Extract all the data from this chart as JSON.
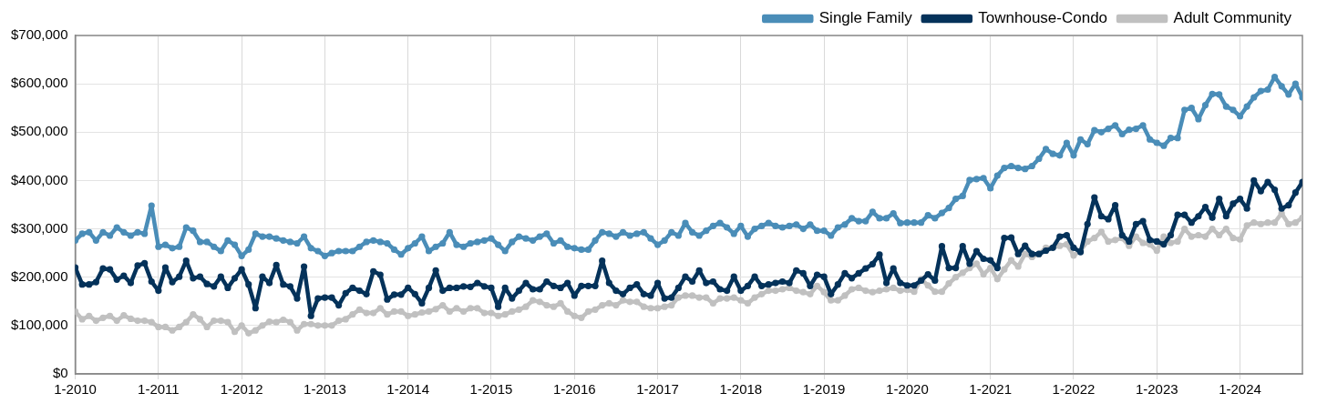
{
  "chart_data": {
    "type": "line",
    "marker": "circle",
    "line_style": "solid",
    "grid": true,
    "legend": "top right",
    "x": [
      "2010-01",
      "2010-02",
      "2010-03",
      "2010-04",
      "2010-05",
      "2010-06",
      "2010-07",
      "2010-08",
      "2010-09",
      "2010-10",
      "2010-11",
      "2010-12",
      "2011-01",
      "2011-02",
      "2011-03",
      "2011-04",
      "2011-05",
      "2011-06",
      "2011-07",
      "2011-08",
      "2011-09",
      "2011-10",
      "2011-11",
      "2011-12",
      "2012-01",
      "2012-02",
      "2012-03",
      "2012-04",
      "2012-05",
      "2012-06",
      "2012-07",
      "2012-08",
      "2012-09",
      "2012-10",
      "2012-11",
      "2012-12",
      "2013-01",
      "2013-02",
      "2013-03",
      "2013-04",
      "2013-05",
      "2013-06",
      "2013-07",
      "2013-08",
      "2013-09",
      "2013-10",
      "2013-11",
      "2013-12",
      "2014-01",
      "2014-02",
      "2014-03",
      "2014-04",
      "2014-05",
      "2014-06",
      "2014-07",
      "2014-08",
      "2014-09",
      "2014-10",
      "2014-11",
      "2014-12",
      "2015-01",
      "2015-02",
      "2015-03",
      "2015-04",
      "2015-05",
      "2015-06",
      "2015-07",
      "2015-08",
      "2015-09",
      "2015-10",
      "2015-11",
      "2015-12",
      "2016-01",
      "2016-02",
      "2016-03",
      "2016-04",
      "2016-05",
      "2016-06",
      "2016-07",
      "2016-08",
      "2016-09",
      "2016-10",
      "2016-11",
      "2016-12",
      "2017-01",
      "2017-02",
      "2017-03",
      "2017-04",
      "2017-05",
      "2017-06",
      "2017-07",
      "2017-08",
      "2017-09",
      "2017-10",
      "2017-11",
      "2017-12",
      "2018-01",
      "2018-02",
      "2018-03",
      "2018-04",
      "2018-05",
      "2018-06",
      "2018-07",
      "2018-08",
      "2018-09",
      "2018-10",
      "2018-11",
      "2018-12",
      "2019-01",
      "2019-02",
      "2019-03",
      "2019-04",
      "2019-05",
      "2019-06",
      "2019-07",
      "2019-08",
      "2019-09",
      "2019-10",
      "2019-11",
      "2019-12",
      "2020-01",
      "2020-02",
      "2020-03",
      "2020-04",
      "2020-05",
      "2020-06",
      "2020-07",
      "2020-08",
      "2020-09",
      "2020-10",
      "2020-11",
      "2020-12",
      "2021-01",
      "2021-02",
      "2021-03",
      "2021-04",
      "2021-05",
      "2021-06",
      "2021-07",
      "2021-08",
      "2021-09",
      "2021-10",
      "2021-11",
      "2021-12",
      "2022-01",
      "2022-02",
      "2022-03",
      "2022-04",
      "2022-05",
      "2022-06",
      "2022-07",
      "2022-08",
      "2022-09",
      "2022-10",
      "2022-11",
      "2022-12",
      "2023-01",
      "2023-02",
      "2023-03",
      "2023-04",
      "2023-05",
      "2023-06",
      "2023-07",
      "2023-08",
      "2023-09",
      "2023-10",
      "2023-11",
      "2023-12",
      "2024-01",
      "2024-02",
      "2024-03",
      "2024-04",
      "2024-05",
      "2024-06",
      "2024-07",
      "2024-08",
      "2024-09",
      "2024-10"
    ],
    "xlim": [
      "2010-01",
      "2024-10"
    ],
    "xticks": [
      {
        "value": "2010-01",
        "label": "1-2010"
      },
      {
        "value": "2011-01",
        "label": "1-2011"
      },
      {
        "value": "2012-01",
        "label": "1-2012"
      },
      {
        "value": "2013-01",
        "label": "1-2013"
      },
      {
        "value": "2014-01",
        "label": "1-2014"
      },
      {
        "value": "2015-01",
        "label": "1-2015"
      },
      {
        "value": "2016-01",
        "label": "1-2016"
      },
      {
        "value": "2017-01",
        "label": "1-2017"
      },
      {
        "value": "2018-01",
        "label": "1-2018"
      },
      {
        "value": "2019-01",
        "label": "1-2019"
      },
      {
        "value": "2020-01",
        "label": "1-2020"
      },
      {
        "value": "2021-01",
        "label": "1-2021"
      },
      {
        "value": "2022-01",
        "label": "1-2022"
      },
      {
        "value": "2023-01",
        "label": "1-2023"
      },
      {
        "value": "2024-01",
        "label": "1-2024"
      }
    ],
    "ylim": [
      0,
      700000
    ],
    "yticks": [
      {
        "value": 0,
        "label": "$0"
      },
      {
        "value": 100000,
        "label": "$100,000"
      },
      {
        "value": 200000,
        "label": "$200,000"
      },
      {
        "value": 300000,
        "label": "$300,000"
      },
      {
        "value": 400000,
        "label": "$400,000"
      },
      {
        "value": 500000,
        "label": "$500,000"
      },
      {
        "value": 600000,
        "label": "$600,000"
      },
      {
        "value": 700000,
        "label": "$700,000"
      }
    ],
    "series": [
      {
        "name": "Single Family",
        "color": "#4a8db8",
        "values": [
          276000,
          290000,
          293000,
          276000,
          293000,
          286000,
          303000,
          293000,
          286000,
          293000,
          290000,
          348000,
          263000,
          267000,
          260000,
          263000,
          303000,
          296000,
          273000,
          273000,
          263000,
          254000,
          276000,
          267000,
          244000,
          257000,
          290000,
          284000,
          284000,
          280000,
          276000,
          273000,
          270000,
          284000,
          260000,
          254000,
          244000,
          250000,
          254000,
          254000,
          254000,
          263000,
          273000,
          276000,
          273000,
          270000,
          257000,
          247000,
          260000,
          270000,
          284000,
          254000,
          263000,
          270000,
          293000,
          267000,
          263000,
          270000,
          273000,
          276000,
          280000,
          267000,
          254000,
          273000,
          284000,
          280000,
          276000,
          284000,
          290000,
          270000,
          276000,
          263000,
          260000,
          257000,
          257000,
          276000,
          293000,
          290000,
          284000,
          293000,
          286000,
          290000,
          293000,
          280000,
          267000,
          276000,
          293000,
          286000,
          312000,
          293000,
          286000,
          296000,
          306000,
          312000,
          303000,
          290000,
          306000,
          284000,
          300000,
          306000,
          312000,
          306000,
          303000,
          306000,
          309000,
          300000,
          309000,
          296000,
          296000,
          286000,
          303000,
          309000,
          322000,
          316000,
          316000,
          335000,
          322000,
          322000,
          332000,
          312000,
          313000,
          313000,
          313000,
          328000,
          322000,
          333000,
          343000,
          362000,
          368000,
          401000,
          403000,
          405000,
          384000,
          410000,
          426000,
          430000,
          426000,
          424000,
          430000,
          445000,
          465000,
          455000,
          452000,
          478000,
          452000,
          485000,
          475000,
          504000,
          500000,
          507000,
          514000,
          496000,
          505000,
          507000,
          514000,
          485000,
          478000,
          472000,
          488000,
          488000,
          546000,
          550000,
          527000,
          556000,
          579000,
          578000,
          553000,
          546000,
          533000,
          553000,
          572000,
          585000,
          588000,
          614000,
          595000,
          578000,
          600000,
          572000
        ]
      },
      {
        "name": "Townhouse-Condo",
        "color": "#04325a",
        "values": [
          220000,
          185000,
          185000,
          190000,
          218000,
          216000,
          195000,
          203000,
          188000,
          224000,
          229000,
          191000,
          172000,
          220000,
          190000,
          201000,
          234000,
          198000,
          201000,
          186000,
          181000,
          201000,
          178000,
          198000,
          216000,
          185000,
          136000,
          201000,
          188000,
          225000,
          185000,
          181000,
          156000,
          222000,
          120000,
          156000,
          158000,
          158000,
          142000,
          167000,
          178000,
          172000,
          165000,
          212000,
          205000,
          154000,
          164000,
          164000,
          178000,
          165000,
          146000,
          178000,
          214000,
          172000,
          178000,
          178000,
          181000,
          180000,
          188000,
          181000,
          178000,
          139000,
          178000,
          156000,
          172000,
          188000,
          175000,
          175000,
          191000,
          182000,
          178000,
          188000,
          162000,
          182000,
          182000,
          182000,
          234000,
          188000,
          172000,
          165000,
          178000,
          185000,
          165000,
          162000,
          188000,
          156000,
          158000,
          178000,
          201000,
          191000,
          214000,
          188000,
          191000,
          175000,
          172000,
          201000,
          172000,
          182000,
          201000,
          182000,
          185000,
          188000,
          191000,
          188000,
          214000,
          208000,
          182000,
          205000,
          201000,
          165000,
          185000,
          208000,
          198000,
          208000,
          218000,
          227000,
          247000,
          188000,
          218000,
          188000,
          183000,
          183000,
          193000,
          206000,
          193000,
          264000,
          219000,
          219000,
          264000,
          228000,
          254000,
          238000,
          235000,
          219000,
          281000,
          282000,
          248000,
          265000,
          248000,
          248000,
          255000,
          261000,
          284000,
          287000,
          261000,
          252000,
          310000,
          365000,
          326000,
          320000,
          349000,
          287000,
          274000,
          310000,
          316000,
          277000,
          274000,
          268000,
          287000,
          329000,
          329000,
          313000,
          326000,
          345000,
          323000,
          362000,
          326000,
          352000,
          362000,
          342000,
          400000,
          378000,
          397000,
          381000,
          342000,
          349000,
          375000,
          397000
        ]
      },
      {
        "name": "Adult Community",
        "color": "#c0c0c0",
        "values": [
          129000,
          113000,
          120000,
          110000,
          116000,
          120000,
          110000,
          121000,
          114000,
          110000,
          110000,
          107000,
          97000,
          97000,
          90000,
          97000,
          107000,
          123000,
          113000,
          97000,
          110000,
          110000,
          107000,
          87000,
          100000,
          84000,
          90000,
          100000,
          108000,
          107000,
          112000,
          107000,
          90000,
          103000,
          103000,
          100000,
          100000,
          100000,
          110000,
          113000,
          123000,
          133000,
          126000,
          126000,
          136000,
          123000,
          129000,
          129000,
          120000,
          123000,
          127000,
          129000,
          134000,
          142000,
          129000,
          136000,
          129000,
          136000,
          136000,
          126000,
          126000,
          120000,
          123000,
          129000,
          133000,
          139000,
          152000,
          149000,
          142000,
          139000,
          146000,
          129000,
          120000,
          116000,
          129000,
          133000,
          142000,
          146000,
          142000,
          152000,
          149000,
          149000,
          139000,
          136000,
          136000,
          139000,
          142000,
          158000,
          162000,
          162000,
          158000,
          158000,
          146000,
          156000,
          156000,
          158000,
          152000,
          146000,
          158000,
          165000,
          172000,
          172000,
          175000,
          178000,
          172000,
          169000,
          165000,
          182000,
          169000,
          152000,
          152000,
          162000,
          175000,
          178000,
          172000,
          169000,
          172000,
          175000,
          178000,
          172000,
          174000,
          170000,
          196000,
          183000,
          170000,
          170000,
          187000,
          200000,
          209000,
          219000,
          228000,
          206000,
          219000,
          196000,
          216000,
          235000,
          222000,
          248000,
          242000,
          248000,
          261000,
          261000,
          265000,
          268000,
          245000,
          255000,
          274000,
          281000,
          294000,
          274000,
          277000,
          281000,
          265000,
          284000,
          271000,
          268000,
          255000,
          284000,
          271000,
          274000,
          300000,
          284000,
          287000,
          284000,
          300000,
          287000,
          300000,
          281000,
          278000,
          307000,
          313000,
          310000,
          313000,
          313000,
          332000,
          310000,
          313000,
          323000
        ]
      }
    ]
  }
}
